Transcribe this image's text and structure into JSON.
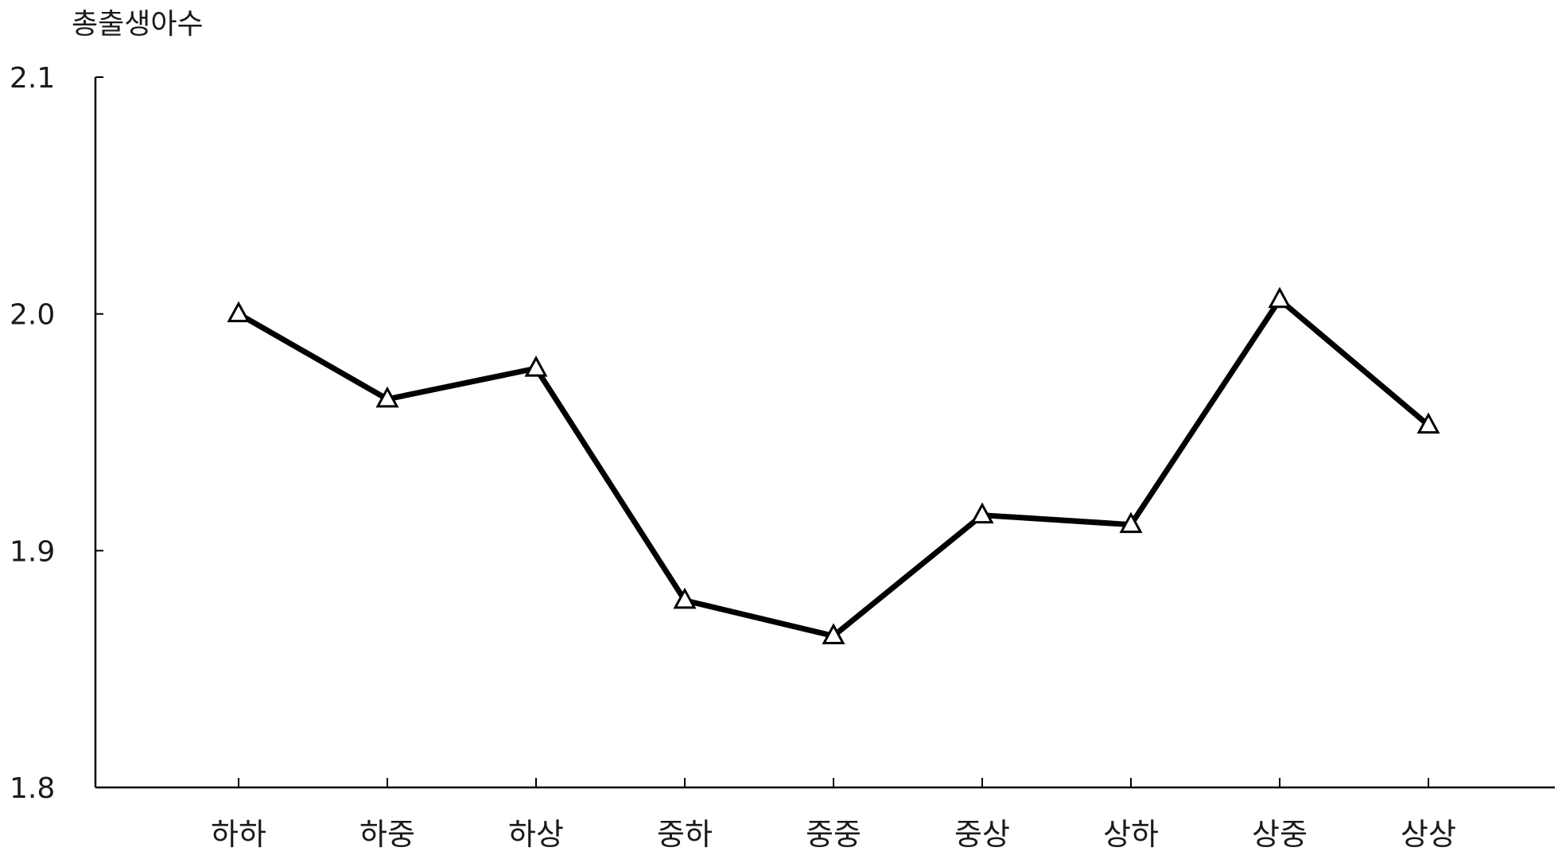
{
  "chart_data": {
    "type": "line",
    "title": "",
    "xlabel": "",
    "ylabel": "총출생아수",
    "ylim": [
      1.8,
      2.1
    ],
    "yticks": [
      "1.8",
      "1.9",
      "2.0",
      "2.1"
    ],
    "grid": false,
    "legend": "none",
    "categories": [
      "하하",
      "하중",
      "하상",
      "중하",
      "중중",
      "중상",
      "상하",
      "상중",
      "상상"
    ],
    "series": [
      {
        "values": [
          2.0,
          1.964,
          1.977,
          1.879,
          1.864,
          1.915,
          1.911,
          2.006,
          1.953
        ],
        "marker": "triangle-open",
        "color": "#000000"
      }
    ]
  }
}
